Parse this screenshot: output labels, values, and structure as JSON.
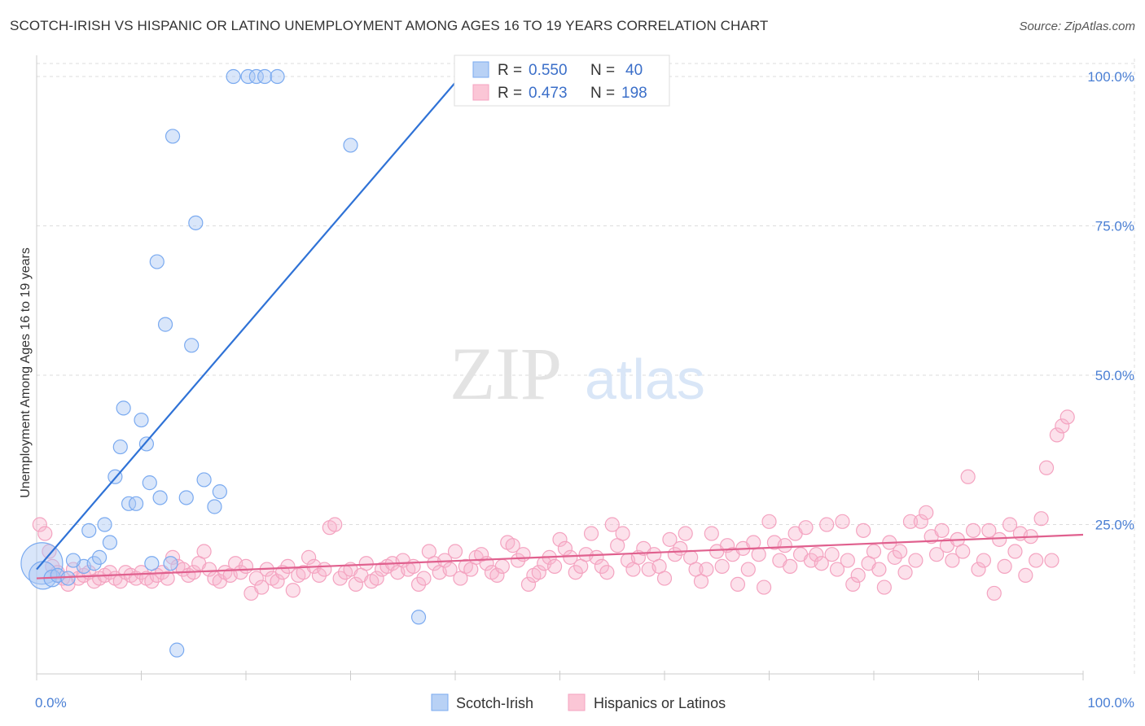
{
  "header": {
    "title": "SCOTCH-IRISH VS HISPANIC OR LATINO UNEMPLOYMENT AMONG AGES 16 TO 19 YEARS CORRELATION CHART",
    "source": "Source: ZipAtlas.com"
  },
  "watermark": {
    "zip": "ZIP",
    "atlas": "atlas"
  },
  "chart_data": {
    "type": "scatter",
    "ylabel": "Unemployment Among Ages 16 to 19 years",
    "xlim": [
      0,
      100
    ],
    "ylim": [
      0,
      103
    ],
    "x_tick_labels": [
      "0.0%",
      "100.0%"
    ],
    "y_ticks": [
      25,
      50,
      75,
      100
    ],
    "y_tick_labels": [
      "25.0%",
      "50.0%",
      "75.0%",
      "100.0%"
    ],
    "grid": true,
    "legend": {
      "placement": "top-center",
      "rows": [
        {
          "r_label": "R =",
          "r_value": "0.550",
          "n_label": "N =",
          "n_value": "40"
        },
        {
          "r_label": "R =",
          "r_value": "0.473",
          "n_label": "N =",
          "n_value": "198"
        }
      ]
    },
    "series": [
      {
        "name": "Scotch-Irish",
        "color": "#7aaaf0",
        "line_color": "#2f72d6",
        "trend": [
          [
            0,
            17.5
          ],
          [
            40.5,
            100
          ]
        ],
        "points": [
          [
            0.5,
            18.5,
            3
          ],
          [
            0.6,
            16.5,
            2
          ],
          [
            1.5,
            16,
            1.2
          ],
          [
            2,
            16.5,
            1
          ],
          [
            3,
            16,
            1
          ],
          [
            4.5,
            18,
            1
          ],
          [
            3.5,
            19,
            1
          ],
          [
            5,
            24,
            1
          ],
          [
            5.5,
            18.5,
            1
          ],
          [
            6,
            19.5,
            1
          ],
          [
            6.5,
            25,
            1
          ],
          [
            7,
            22,
            1
          ],
          [
            7.5,
            33,
            1
          ],
          [
            8,
            38,
            1
          ],
          [
            8.3,
            44.5,
            1
          ],
          [
            8.8,
            28.5,
            1
          ],
          [
            9.5,
            28.5,
            1
          ],
          [
            10,
            42.5,
            1
          ],
          [
            10.5,
            38.5,
            1
          ],
          [
            10.8,
            32,
            1
          ],
          [
            11,
            18.5,
            1
          ],
          [
            11.5,
            69,
            1
          ],
          [
            11.8,
            29.5,
            1
          ],
          [
            12.3,
            58.5,
            1
          ],
          [
            12.8,
            18.5,
            1
          ],
          [
            13,
            90,
            1
          ],
          [
            13.4,
            4,
            1
          ],
          [
            14.3,
            29.5,
            1
          ],
          [
            14.8,
            55,
            1
          ],
          [
            15.2,
            75.5,
            1
          ],
          [
            16,
            32.5,
            1
          ],
          [
            17,
            28,
            1
          ],
          [
            17.5,
            30.5,
            1
          ],
          [
            18.8,
            100,
            1
          ],
          [
            20.2,
            100,
            1
          ],
          [
            21,
            100,
            1
          ],
          [
            21.8,
            100,
            1
          ],
          [
            23,
            100,
            1
          ],
          [
            30,
            88.5,
            1
          ],
          [
            36.5,
            9.5,
            1
          ]
        ]
      },
      {
        "name": "Hispanics or Latinos",
        "color": "#f4a3c0",
        "line_color": "#e0608e",
        "trend": [
          [
            0,
            16
          ],
          [
            100,
            23.3
          ]
        ],
        "points": [
          [
            0.3,
            25,
            1
          ],
          [
            0.8,
            23.5,
            1
          ],
          [
            1.2,
            20.5,
            1
          ],
          [
            1.5,
            18,
            1
          ],
          [
            2,
            17,
            1
          ],
          [
            2.5,
            16,
            1
          ],
          [
            3,
            15,
            1
          ],
          [
            3.5,
            17.5,
            1
          ],
          [
            4,
            16,
            1
          ],
          [
            4.5,
            16.5,
            1
          ],
          [
            5,
            17,
            1
          ],
          [
            5.5,
            15.5,
            1
          ],
          [
            6,
            16,
            1
          ],
          [
            6.5,
            16.5,
            1
          ],
          [
            7,
            17,
            1
          ],
          [
            7.5,
            16,
            1
          ],
          [
            8,
            15.5,
            1
          ],
          [
            8.5,
            17,
            1
          ],
          [
            9,
            16.5,
            1
          ],
          [
            9.5,
            16,
            1
          ],
          [
            10,
            17,
            1
          ],
          [
            10.5,
            16,
            1
          ],
          [
            11,
            15.5,
            1
          ],
          [
            11.5,
            16.5,
            1
          ],
          [
            12,
            17,
            1
          ],
          [
            12.5,
            16,
            1
          ],
          [
            13,
            19.5,
            1
          ],
          [
            13.5,
            18,
            1
          ],
          [
            14,
            17.5,
            1
          ],
          [
            14.5,
            16.5,
            1
          ],
          [
            15,
            17,
            1
          ],
          [
            15.5,
            18.5,
            1
          ],
          [
            16,
            20.5,
            1
          ],
          [
            16.5,
            17.5,
            1
          ],
          [
            17,
            16,
            1
          ],
          [
            17.5,
            15.5,
            1
          ],
          [
            18,
            17,
            1
          ],
          [
            18.5,
            16.5,
            1
          ],
          [
            19,
            18.5,
            1
          ],
          [
            19.5,
            17,
            1
          ],
          [
            20,
            18,
            1
          ],
          [
            20.5,
            13.5,
            1
          ],
          [
            21,
            16,
            1
          ],
          [
            21.5,
            14.5,
            1
          ],
          [
            22,
            17.5,
            1
          ],
          [
            22.5,
            16,
            1
          ],
          [
            23,
            15.5,
            1
          ],
          [
            23.5,
            17,
            1
          ],
          [
            24,
            18,
            1
          ],
          [
            24.5,
            14,
            1
          ],
          [
            25,
            16.5,
            1
          ],
          [
            25.5,
            17,
            1
          ],
          [
            26,
            19.5,
            1
          ],
          [
            26.5,
            18,
            1
          ],
          [
            27,
            16.5,
            1
          ],
          [
            27.5,
            17.5,
            1
          ],
          [
            28,
            24.5,
            1
          ],
          [
            28.5,
            25,
            1
          ],
          [
            29,
            16,
            1
          ],
          [
            29.5,
            17,
            1
          ],
          [
            30,
            17.5,
            1
          ],
          [
            30.5,
            15,
            1
          ],
          [
            31,
            16.5,
            1
          ],
          [
            31.5,
            18.5,
            1
          ],
          [
            32,
            15.5,
            1
          ],
          [
            32.5,
            16,
            1
          ],
          [
            33,
            17.5,
            1
          ],
          [
            33.5,
            18,
            1
          ],
          [
            34,
            18.5,
            1
          ],
          [
            34.5,
            17,
            1
          ],
          [
            35,
            19,
            1
          ],
          [
            35.5,
            17.5,
            1
          ],
          [
            36,
            18,
            1
          ],
          [
            36.5,
            15,
            1
          ],
          [
            37,
            16,
            1
          ],
          [
            37.5,
            20.5,
            1
          ],
          [
            38,
            18.5,
            1
          ],
          [
            38.5,
            17,
            1
          ],
          [
            39,
            19,
            1
          ],
          [
            39.5,
            17.5,
            1
          ],
          [
            40,
            20.5,
            1
          ],
          [
            40.5,
            16,
            1
          ],
          [
            41,
            18,
            1
          ],
          [
            41.5,
            17.5,
            1
          ],
          [
            42,
            19.5,
            1
          ],
          [
            42.5,
            20,
            1
          ],
          [
            43,
            18.5,
            1
          ],
          [
            43.5,
            17,
            1
          ],
          [
            44,
            16.5,
            1
          ],
          [
            44.5,
            18,
            1
          ],
          [
            45,
            22,
            1
          ],
          [
            45.5,
            21.5,
            1
          ],
          [
            46,
            19,
            1
          ],
          [
            46.5,
            20,
            1
          ],
          [
            47,
            15,
            1
          ],
          [
            47.5,
            16.5,
            1
          ],
          [
            48,
            17,
            1
          ],
          [
            48.5,
            18.5,
            1
          ],
          [
            49,
            19.5,
            1
          ],
          [
            49.5,
            18,
            1
          ],
          [
            50,
            22.5,
            1
          ],
          [
            50.5,
            21,
            1
          ],
          [
            51,
            19.5,
            1
          ],
          [
            51.5,
            17,
            1
          ],
          [
            52,
            18,
            1
          ],
          [
            52.5,
            20,
            1
          ],
          [
            53,
            23.5,
            1
          ],
          [
            53.5,
            19.5,
            1
          ],
          [
            54,
            18,
            1
          ],
          [
            54.5,
            17,
            1
          ],
          [
            55,
            25,
            1
          ],
          [
            55.5,
            21.5,
            1
          ],
          [
            56,
            23.5,
            1
          ],
          [
            56.5,
            19,
            1
          ],
          [
            57,
            17.5,
            1
          ],
          [
            57.5,
            19.5,
            1
          ],
          [
            58,
            21,
            1
          ],
          [
            58.5,
            17.5,
            1
          ],
          [
            59,
            20,
            1
          ],
          [
            59.5,
            18,
            1
          ],
          [
            60,
            16,
            1
          ],
          [
            60.5,
            22.5,
            1
          ],
          [
            61,
            20,
            1
          ],
          [
            61.5,
            21,
            1
          ],
          [
            62,
            23.5,
            1
          ],
          [
            62.5,
            19.5,
            1
          ],
          [
            63,
            17.5,
            1
          ],
          [
            63.5,
            15.5,
            1
          ],
          [
            64,
            17.5,
            1
          ],
          [
            64.5,
            23.5,
            1
          ],
          [
            65,
            20.5,
            1
          ],
          [
            65.5,
            18,
            1
          ],
          [
            66,
            21.5,
            1
          ],
          [
            66.5,
            20,
            1
          ],
          [
            67,
            15,
            1
          ],
          [
            67.5,
            21,
            1
          ],
          [
            68,
            17.5,
            1
          ],
          [
            68.5,
            22,
            1
          ],
          [
            69,
            20,
            1
          ],
          [
            69.5,
            14.5,
            1
          ],
          [
            70,
            25.5,
            1
          ],
          [
            70.5,
            22,
            1
          ],
          [
            71,
            19,
            1
          ],
          [
            71.5,
            21.5,
            1
          ],
          [
            72,
            18,
            1
          ],
          [
            72.5,
            23.5,
            1
          ],
          [
            73,
            20,
            1
          ],
          [
            73.5,
            24.5,
            1
          ],
          [
            74,
            19,
            1
          ],
          [
            74.5,
            20,
            1
          ],
          [
            75,
            18.5,
            1
          ],
          [
            75.5,
            25,
            1
          ],
          [
            76,
            20,
            1
          ],
          [
            76.5,
            17.5,
            1
          ],
          [
            77,
            25.5,
            1
          ],
          [
            77.5,
            19,
            1
          ],
          [
            78,
            15,
            1
          ],
          [
            78.5,
            16.5,
            1
          ],
          [
            79,
            24,
            1
          ],
          [
            79.5,
            18.5,
            1
          ],
          [
            80,
            20.5,
            1
          ],
          [
            80.5,
            17.5,
            1
          ],
          [
            81,
            14.5,
            1
          ],
          [
            81.5,
            22,
            1
          ],
          [
            82,
            19.5,
            1
          ],
          [
            82.5,
            20.5,
            1
          ],
          [
            83,
            17,
            1
          ],
          [
            83.5,
            25.5,
            1
          ],
          [
            84,
            19,
            1
          ],
          [
            84.5,
            25.5,
            1
          ],
          [
            85,
            27,
            1
          ],
          [
            85.5,
            23,
            1
          ],
          [
            86,
            20,
            1
          ],
          [
            86.5,
            24,
            1
          ],
          [
            87,
            21.5,
            1
          ],
          [
            87.5,
            19,
            1
          ],
          [
            88,
            22.5,
            1
          ],
          [
            88.5,
            20.5,
            1
          ],
          [
            89,
            33,
            1
          ],
          [
            89.5,
            24,
            1
          ],
          [
            90,
            17.5,
            1
          ],
          [
            90.5,
            19,
            1
          ],
          [
            91,
            24,
            1
          ],
          [
            91.5,
            13.5,
            1
          ],
          [
            92,
            22.5,
            1
          ],
          [
            92.5,
            18,
            1
          ],
          [
            93,
            25,
            1
          ],
          [
            93.5,
            20.5,
            1
          ],
          [
            94,
            23.5,
            1
          ],
          [
            94.5,
            16.5,
            1
          ],
          [
            95,
            23,
            1
          ],
          [
            95.5,
            19,
            1
          ],
          [
            96,
            26,
            1
          ],
          [
            96.5,
            34.5,
            1
          ],
          [
            97,
            19,
            1
          ],
          [
            97.5,
            40,
            1
          ],
          [
            98,
            41.5,
            1
          ],
          [
            98.5,
            43,
            1
          ]
        ]
      }
    ]
  }
}
